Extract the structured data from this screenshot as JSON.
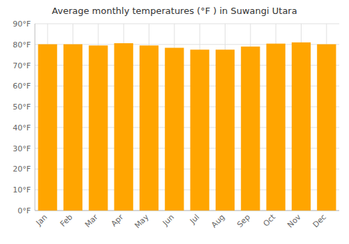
{
  "chart_data": {
    "type": "bar",
    "title": "Average monthly temperatures (°F ) in Suwangi Utara",
    "categories": [
      "Jan",
      "Feb",
      "Mar",
      "Apr",
      "May",
      "Jun",
      "Jul",
      "Aug",
      "Sep",
      "Oct",
      "Nov",
      "Dec"
    ],
    "values": [
      80.1,
      80.1,
      79.5,
      80.6,
      79.5,
      78.4,
      77.5,
      77.5,
      79.0,
      80.4,
      81.0,
      80.1
    ],
    "color": "#FFA500",
    "ylim": [
      0,
      90
    ],
    "yticks": [
      {
        "value": 0,
        "label": "0°F"
      },
      {
        "value": 10,
        "label": "10°F"
      },
      {
        "value": 20,
        "label": "20°F"
      },
      {
        "value": 30,
        "label": "30°F"
      },
      {
        "value": 40,
        "label": "40°F"
      },
      {
        "value": 50,
        "label": "50°F"
      },
      {
        "value": 60,
        "label": "60°F"
      },
      {
        "value": 70,
        "label": "70°F"
      },
      {
        "value": 80,
        "label": "80°F"
      },
      {
        "value": 90,
        "label": "90°F"
      }
    ],
    "grid": true
  }
}
